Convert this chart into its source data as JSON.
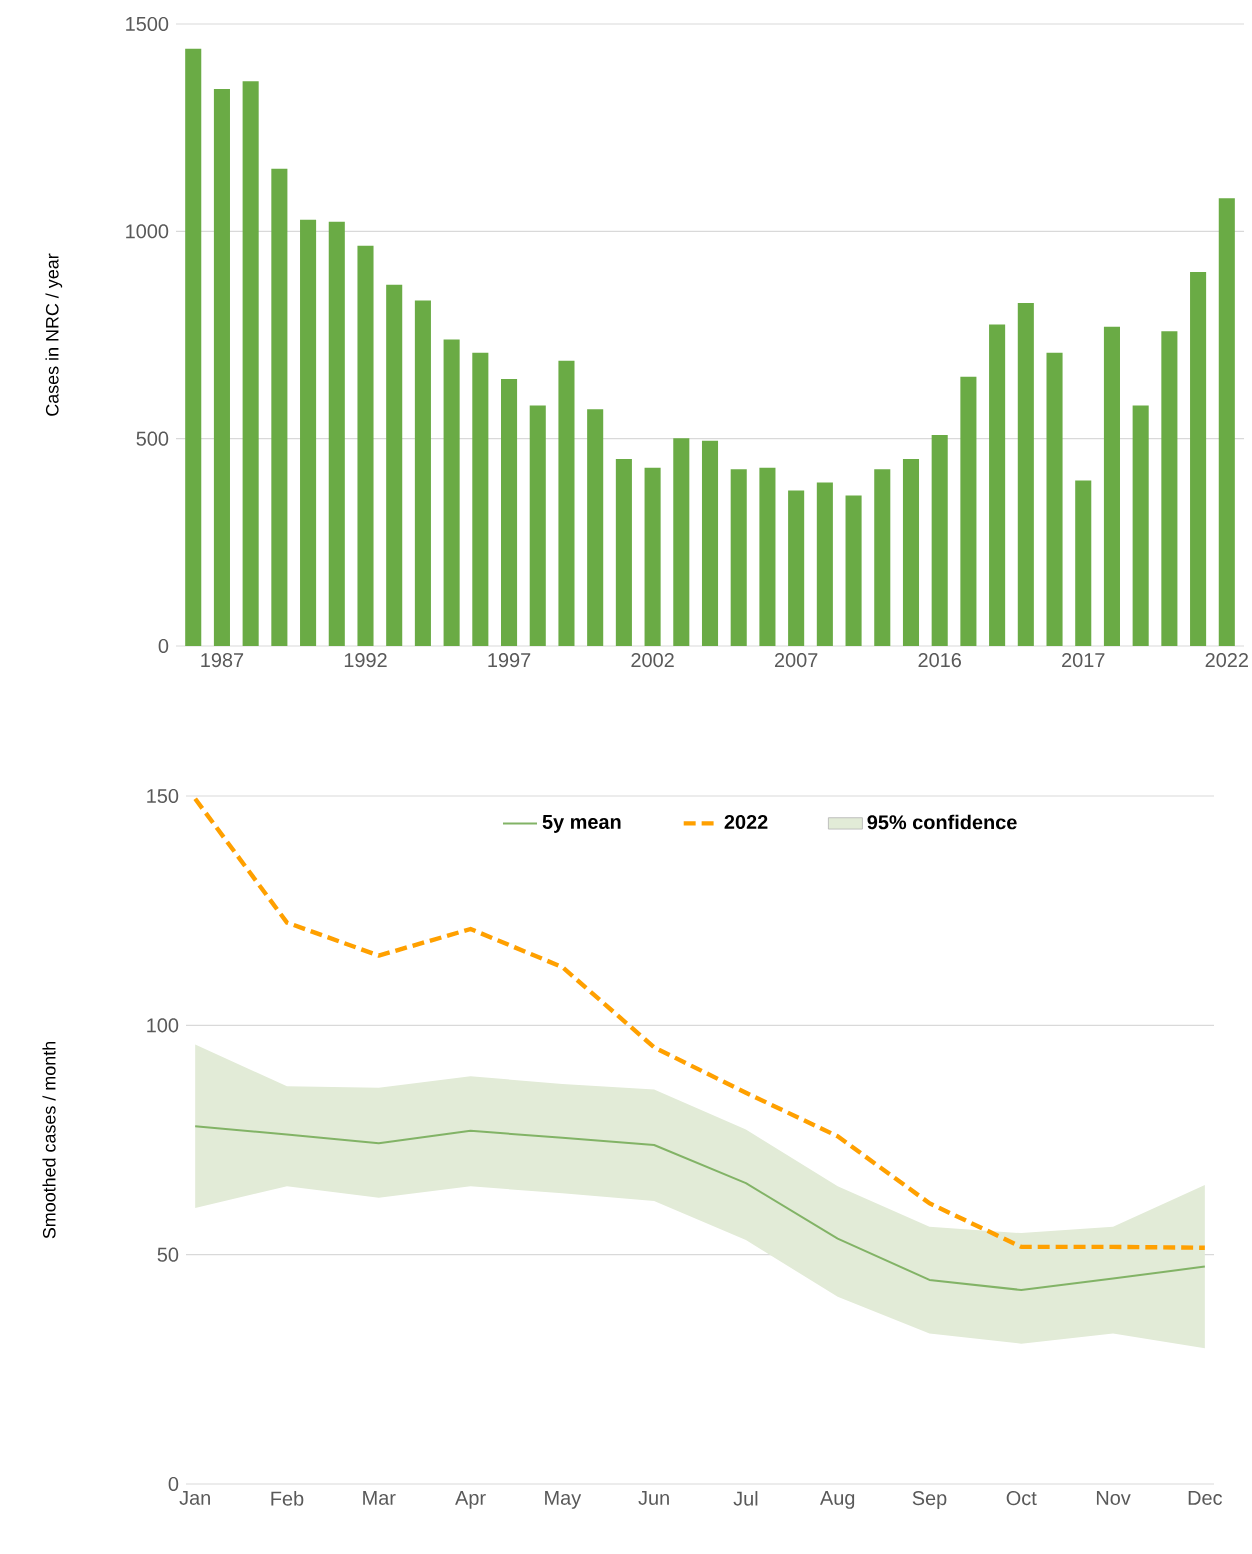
{
  "chart_data": [
    {
      "type": "bar",
      "ylabel": "Cases in NRC / year",
      "categories": [
        null,
        "1987",
        null,
        null,
        null,
        null,
        "1992",
        null,
        null,
        null,
        null,
        "1997",
        null,
        null,
        null,
        null,
        "2002",
        null,
        null,
        null,
        null,
        "2007",
        null,
        null,
        null,
        null,
        "2016",
        null,
        null,
        null,
        null,
        "2017",
        null,
        null,
        null,
        null,
        "2022"
      ],
      "values": [
        1440,
        1343,
        1362,
        1151,
        1028,
        1023,
        965,
        871,
        833,
        739,
        707,
        644,
        580,
        688,
        571,
        451,
        430,
        501,
        495,
        426,
        430,
        375,
        394,
        363,
        426,
        451,
        509,
        649,
        775,
        827,
        707,
        399,
        770,
        580,
        759,
        902,
        1080
      ],
      "color": "#6aab45",
      "ylim": [
        0,
        1500
      ],
      "yticks": [
        0,
        500,
        1000,
        1500
      ],
      "grid": "y"
    },
    {
      "type": "line",
      "ylabel": "Smoothed cases / month",
      "categories": [
        "Jan",
        "Feb",
        "Mar",
        "Apr",
        "May",
        "Jun",
        "Jul",
        "Aug",
        "Sep",
        "Oct",
        "Nov",
        "Dec"
      ],
      "series": [
        {
          "name": "5y mean",
          "color": "#82b366",
          "line_style": "solid",
          "values": [
            78,
            76.2,
            74.3,
            77,
            75.5,
            73.9,
            65.6,
            53.5,
            44.5,
            42.3,
            44.8,
            47.4
          ]
        },
        {
          "name": "2022",
          "color": "#ffa000",
          "line_style": "dashed",
          "values": [
            149.4,
            122.4,
            115.2,
            121,
            112.7,
            95.2,
            85.3,
            75.8,
            61.2,
            51.7,
            51.7,
            51.5
          ]
        },
        {
          "name": "95% confidence",
          "type": "area",
          "color": "#e2ebd7",
          "values": [
            null,
            null,
            null,
            null,
            null,
            null,
            null,
            null,
            null,
            null,
            null,
            null
          ],
          "lower": [
            60.2,
            64.9,
            62.4,
            64.9,
            63.4,
            61.7,
            53.2,
            40.8,
            32.8,
            30.6,
            32.8,
            29.6
          ],
          "upper": [
            95.8,
            86.7,
            86.4,
            88.9,
            87.2,
            86,
            77.3,
            64.9,
            56.1,
            54.7,
            56.1,
            65.2
          ]
        }
      ],
      "ylim": [
        0,
        150
      ],
      "yticks": [
        0,
        50,
        100,
        150
      ],
      "grid": "y",
      "legend": "top"
    }
  ]
}
